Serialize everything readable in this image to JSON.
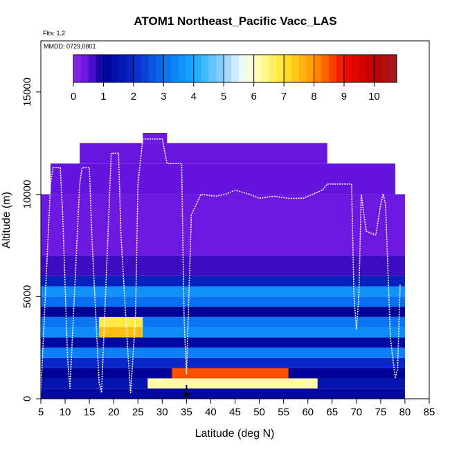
{
  "chart_data": {
    "type": "heatmap",
    "title": "ATOM1 Northeast_Pacific Vacc_LAS",
    "annotations": {
      "flights": "Flts: 1,2",
      "dates": "MMDD: 0729,0801"
    },
    "xlabel": "Latitude (deg N)",
    "ylabel": "Altitude (m)",
    "xlim": [
      5,
      85
    ],
    "ylim": [
      0,
      17500
    ],
    "x_ticks": [
      5,
      10,
      15,
      20,
      25,
      30,
      35,
      40,
      45,
      50,
      55,
      60,
      65,
      70,
      75,
      80,
      85
    ],
    "y_ticks": [
      0,
      5000,
      10000,
      15000
    ],
    "colorbar": {
      "min": 0,
      "max": 10.75,
      "ticks": [
        0,
        1,
        2,
        3,
        4,
        5,
        6,
        7,
        8,
        9,
        10
      ],
      "placement": "top-inside"
    },
    "marker_latitude": 35,
    "grid": false,
    "curtain_bands": [
      {
        "alt0": 0,
        "alt1": 500,
        "lat0": 5,
        "lat1": 80,
        "value": 1.2
      },
      {
        "alt0": 500,
        "alt1": 1000,
        "lat0": 5,
        "lat1": 80,
        "value": 1.5
      },
      {
        "alt0": 500,
        "alt1": 1000,
        "lat0": 27,
        "lat1": 62,
        "value": 6.2
      },
      {
        "alt0": 1000,
        "alt1": 1500,
        "lat0": 5,
        "lat1": 80,
        "value": 1.0
      },
      {
        "alt0": 1000,
        "alt1": 1500,
        "lat0": 32,
        "lat1": 56,
        "value": 8.5
      },
      {
        "alt0": 1500,
        "alt1": 2000,
        "lat0": 5,
        "lat1": 80,
        "value": 2.0
      },
      {
        "alt0": 2000,
        "alt1": 2500,
        "lat0": 5,
        "lat1": 80,
        "value": 3.3
      },
      {
        "alt0": 2500,
        "alt1": 3000,
        "lat0": 5,
        "lat1": 80,
        "value": 1.2
      },
      {
        "alt0": 3000,
        "alt1": 3500,
        "lat0": 5,
        "lat1": 80,
        "value": 3.5
      },
      {
        "alt0": 3000,
        "alt1": 3500,
        "lat0": 17,
        "lat1": 26,
        "value": 7.5
      },
      {
        "alt0": 3500,
        "alt1": 4000,
        "lat0": 5,
        "lat1": 80,
        "value": 3.1
      },
      {
        "alt0": 3500,
        "alt1": 4000,
        "lat0": 17,
        "lat1": 26,
        "value": 6.8
      },
      {
        "alt0": 4000,
        "alt1": 4500,
        "lat0": 5,
        "lat1": 80,
        "value": 1.0
      },
      {
        "alt0": 4500,
        "alt1": 5000,
        "lat0": 5,
        "lat1": 80,
        "value": 3.0
      },
      {
        "alt0": 5000,
        "alt1": 5500,
        "lat0": 5,
        "lat1": 80,
        "value": 3.6
      },
      {
        "alt0": 5500,
        "alt1": 6000,
        "lat0": 5,
        "lat1": 80,
        "value": 1.8
      },
      {
        "alt0": 6000,
        "alt1": 7000,
        "lat0": 5,
        "lat1": 80,
        "value": 0.7
      },
      {
        "alt0": 7000,
        "alt1": 10000,
        "lat0": 5,
        "lat1": 80,
        "value": 0.4
      },
      {
        "alt0": 10000,
        "alt1": 11500,
        "lat0": 7,
        "lat1": 78,
        "value": 0.5
      },
      {
        "alt0": 11500,
        "alt1": 12500,
        "lat0": 13,
        "lat1": 64,
        "value": 0.45
      },
      {
        "alt0": 12500,
        "alt1": 13000,
        "lat0": 26,
        "lat1": 31,
        "value": 0.4
      }
    ],
    "flight_track": {
      "latitude": [
        5,
        7,
        7.5,
        9,
        9.5,
        10.5,
        11,
        13,
        13.5,
        15,
        15.5,
        17,
        17.5,
        19,
        19.5,
        21,
        21.5,
        23,
        23.5,
        24.5,
        25,
        26,
        27,
        30,
        31,
        34,
        34.5,
        35,
        36,
        38,
        41,
        43,
        45,
        48,
        50,
        53,
        56,
        59,
        63,
        64,
        66,
        68,
        69,
        69.5,
        70,
        70.5,
        71,
        72,
        73,
        74,
        75,
        75.5,
        76,
        77,
        78,
        78.5,
        79
      ],
      "altitude": [
        300,
        10500,
        11300,
        11300,
        9000,
        2000,
        500,
        10500,
        11300,
        11300,
        8000,
        800,
        300,
        9000,
        12000,
        12000,
        8000,
        2000,
        300,
        4000,
        10500,
        12700,
        12700,
        12700,
        11500,
        11500,
        4000,
        1200,
        9000,
        10000,
        9900,
        10000,
        10200,
        10000,
        9800,
        9900,
        9800,
        9800,
        10200,
        10500,
        10500,
        10500,
        10500,
        5000,
        3400,
        5000,
        10000,
        8200,
        8100,
        8000,
        9500,
        10000,
        9500,
        3000,
        1000,
        1500,
        5600
      ]
    }
  }
}
